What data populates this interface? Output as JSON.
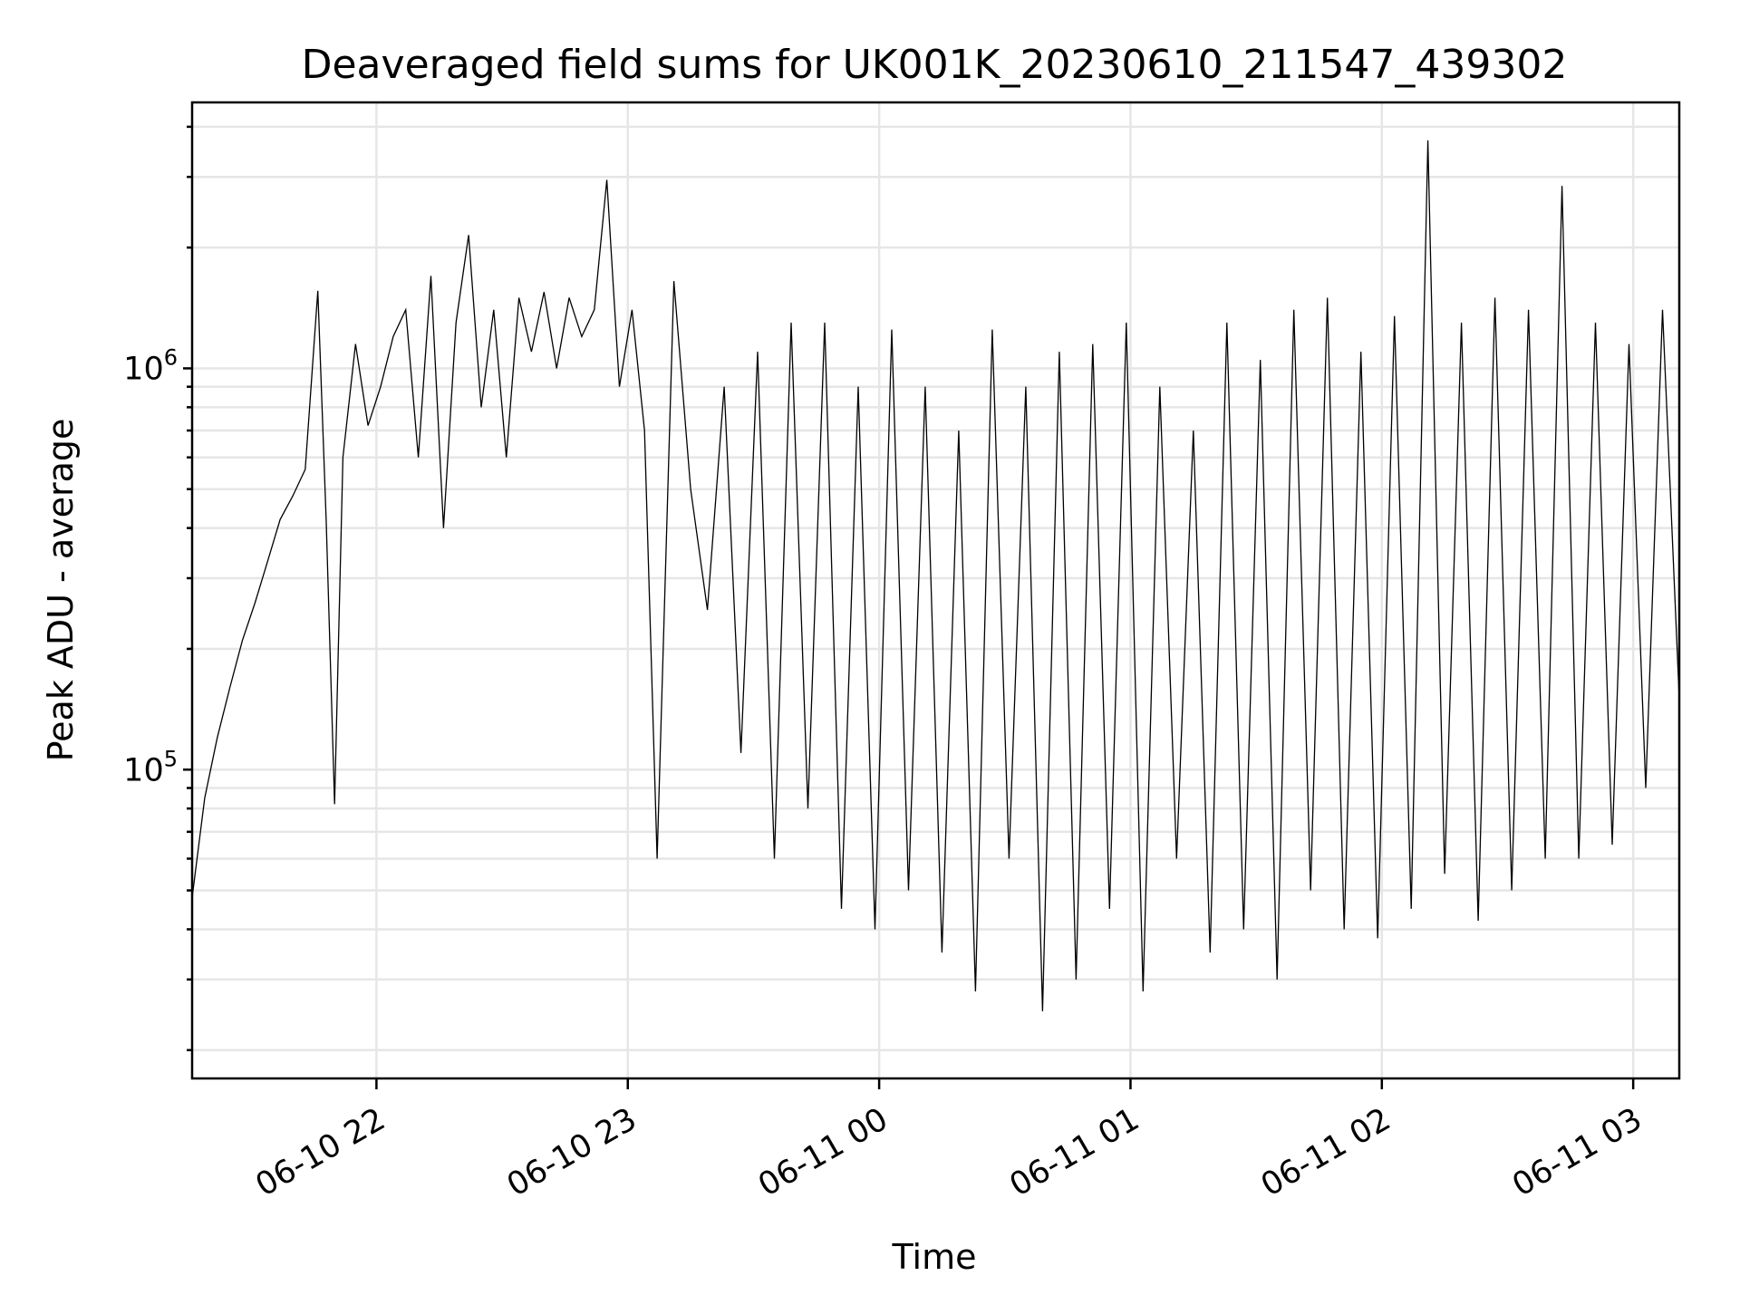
{
  "chart_data": {
    "type": "line",
    "title": "Deaveraged field sums for UK001K_20230610_211547_439302",
    "xlabel": "Time",
    "ylabel": "Peak ADU - average",
    "xlim": [
      "2023-06-10 21:16",
      "2023-06-11 03:11"
    ],
    "ylim": [
      17000,
      4600000
    ],
    "yscale": "log",
    "grid": true,
    "legend": "none",
    "line_color": "#000000",
    "x_ticks": [
      {
        "value": "2023-06-10 22:00",
        "label": "06-10 22"
      },
      {
        "value": "2023-06-10 23:00",
        "label": "06-10 23"
      },
      {
        "value": "2023-06-11 00:00",
        "label": "06-11 00"
      },
      {
        "value": "2023-06-11 01:00",
        "label": "06-11 01"
      },
      {
        "value": "2023-06-11 02:00",
        "label": "06-11 02"
      },
      {
        "value": "2023-06-11 03:00",
        "label": "06-11 03"
      }
    ],
    "y_ticks": [
      {
        "value": 100000,
        "base": "10",
        "exp": "5"
      },
      {
        "value": 1000000,
        "base": "10",
        "exp": "6"
      }
    ],
    "series": [
      {
        "x": [
          "2023-06-10 21:16",
          "2023-06-10 21:19",
          "2023-06-10 21:22",
          "2023-06-10 21:25",
          "2023-06-10 21:28",
          "2023-06-10 21:31",
          "2023-06-10 21:34",
          "2023-06-10 21:37",
          "2023-06-10 21:40",
          "2023-06-10 21:43",
          "2023-06-10 21:46",
          "2023-06-10 21:48",
          "2023-06-10 21:50",
          "2023-06-10 21:52",
          "2023-06-10 21:55",
          "2023-06-10 21:58",
          "2023-06-10 22:01",
          "2023-06-10 22:04",
          "2023-06-10 22:07",
          "2023-06-10 22:10",
          "2023-06-10 22:13",
          "2023-06-10 22:16",
          "2023-06-10 22:19",
          "2023-06-10 22:22",
          "2023-06-10 22:25",
          "2023-06-10 22:28",
          "2023-06-10 22:31",
          "2023-06-10 22:34",
          "2023-06-10 22:37",
          "2023-06-10 22:40",
          "2023-06-10 22:43",
          "2023-06-10 22:46",
          "2023-06-10 22:49",
          "2023-06-10 22:52",
          "2023-06-10 22:55",
          "2023-06-10 22:58",
          "2023-06-10 23:01",
          "2023-06-10 23:04",
          "2023-06-10 23:07",
          "2023-06-10 23:11",
          "2023-06-10 23:15",
          "2023-06-10 23:19",
          "2023-06-10 23:23",
          "2023-06-10 23:27",
          "2023-06-10 23:31",
          "2023-06-10 23:35",
          "2023-06-10 23:39",
          "2023-06-10 23:43",
          "2023-06-10 23:47",
          "2023-06-10 23:51",
          "2023-06-10 23:55",
          "2023-06-10 23:59",
          "2023-06-11 00:03",
          "2023-06-11 00:07",
          "2023-06-11 00:11",
          "2023-06-11 00:15",
          "2023-06-11 00:19",
          "2023-06-11 00:23",
          "2023-06-11 00:27",
          "2023-06-11 00:31",
          "2023-06-11 00:35",
          "2023-06-11 00:39",
          "2023-06-11 00:43",
          "2023-06-11 00:47",
          "2023-06-11 00:51",
          "2023-06-11 00:55",
          "2023-06-11 00:59",
          "2023-06-11 01:03",
          "2023-06-11 01:07",
          "2023-06-11 01:11",
          "2023-06-11 01:15",
          "2023-06-11 01:19",
          "2023-06-11 01:23",
          "2023-06-11 01:27",
          "2023-06-11 01:31",
          "2023-06-11 01:35",
          "2023-06-11 01:39",
          "2023-06-11 01:43",
          "2023-06-11 01:47",
          "2023-06-11 01:51",
          "2023-06-11 01:55",
          "2023-06-11 01:59",
          "2023-06-11 02:03",
          "2023-06-11 02:07",
          "2023-06-11 02:11",
          "2023-06-11 02:15",
          "2023-06-11 02:19",
          "2023-06-11 02:23",
          "2023-06-11 02:27",
          "2023-06-11 02:31",
          "2023-06-11 02:35",
          "2023-06-11 02:39",
          "2023-06-11 02:43",
          "2023-06-11 02:47",
          "2023-06-11 02:51",
          "2023-06-11 02:55",
          "2023-06-11 02:59",
          "2023-06-11 03:03",
          "2023-06-11 03:07",
          "2023-06-11 03:11"
        ],
        "y": [
          48000,
          85000,
          120000,
          160000,
          210000,
          260000,
          330000,
          420000,
          480000,
          560000,
          1560000,
          420000,
          82000,
          600000,
          1150000,
          720000,
          900000,
          1200000,
          1400000,
          600000,
          1700000,
          400000,
          1300000,
          2150000,
          800000,
          1400000,
          600000,
          1500000,
          1100000,
          1550000,
          1000000,
          1500000,
          1200000,
          1400000,
          2950000,
          900000,
          1400000,
          700000,
          60000,
          1650000,
          500000,
          250000,
          900000,
          110000,
          1100000,
          60000,
          1300000,
          80000,
          1300000,
          45000,
          900000,
          40000,
          1250000,
          50000,
          900000,
          35000,
          700000,
          28000,
          1250000,
          60000,
          900000,
          25000,
          1100000,
          30000,
          1150000,
          45000,
          1300000,
          28000,
          900000,
          60000,
          700000,
          35000,
          1300000,
          40000,
          1050000,
          30000,
          1400000,
          50000,
          1500000,
          40000,
          1100000,
          38000,
          1350000,
          45000,
          3700000,
          55000,
          1300000,
          42000,
          1500000,
          50000,
          1400000,
          60000,
          2850000,
          60000,
          1300000,
          65000,
          1150000,
          90000,
          1400000,
          150000
        ]
      }
    ]
  }
}
